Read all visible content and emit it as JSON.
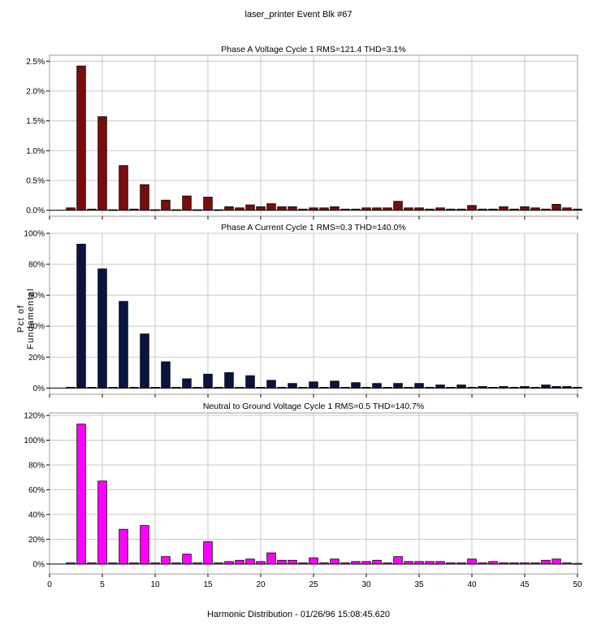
{
  "header": {
    "title": "laser_printer Event Blk #67"
  },
  "footer": {
    "xlabel": "Harmonic Distribution - 01/26/96 15:08:45.620"
  },
  "axis": {
    "ylabel": "Pct of Fundamental"
  },
  "chart_data": [
    {
      "type": "bar",
      "title": "Phase A Voltage Cycle 1 RMS=121.4 THD=3.1%",
      "color": "#7b0c0c",
      "xlim": [
        0,
        50
      ],
      "ylim": [
        -0.1,
        2.6
      ],
      "yticks": [
        0,
        0.5,
        1.0,
        1.5,
        2.0,
        2.5
      ],
      "ytick_labels": [
        "0.0%",
        "0.5%",
        "1.0%",
        "1.5%",
        "2.0%",
        "2.5%"
      ],
      "grid": true,
      "x": [
        2,
        3,
        4,
        5,
        6,
        7,
        8,
        9,
        10,
        11,
        12,
        13,
        14,
        15,
        16,
        17,
        18,
        19,
        20,
        21,
        22,
        23,
        24,
        25,
        26,
        27,
        28,
        29,
        30,
        31,
        32,
        33,
        34,
        35,
        36,
        37,
        38,
        39,
        40,
        41,
        42,
        43,
        44,
        45,
        46,
        47,
        48,
        49,
        50
      ],
      "values": [
        0.04,
        2.42,
        0.02,
        1.57,
        0.01,
        0.75,
        0.02,
        0.43,
        0.01,
        0.17,
        0.01,
        0.24,
        0.01,
        0.22,
        0.01,
        0.06,
        0.04,
        0.09,
        0.06,
        0.11,
        0.06,
        0.06,
        0.02,
        0.04,
        0.04,
        0.06,
        0.02,
        0.02,
        0.04,
        0.04,
        0.04,
        0.15,
        0.04,
        0.04,
        0.02,
        0.04,
        0.02,
        0.02,
        0.08,
        0.02,
        0.02,
        0.06,
        0.02,
        0.06,
        0.04,
        0.02,
        0.1,
        0.04,
        0.02
      ]
    },
    {
      "type": "bar",
      "title": "Phase A Current Cycle 1 RMS=0.3 THD=140.0%",
      "color": "#0a1440",
      "xlim": [
        0,
        50
      ],
      "ylim": [
        -4,
        100
      ],
      "yticks": [
        0,
        20,
        40,
        60,
        80,
        100
      ],
      "ytick_labels": [
        "0%",
        "20%",
        "40%",
        "60%",
        "80%",
        "100%"
      ],
      "grid": true,
      "x": [
        2,
        3,
        4,
        5,
        6,
        7,
        8,
        9,
        10,
        11,
        12,
        13,
        14,
        15,
        16,
        17,
        18,
        19,
        20,
        21,
        22,
        23,
        24,
        25,
        26,
        27,
        28,
        29,
        30,
        31,
        32,
        33,
        34,
        35,
        36,
        37,
        38,
        39,
        40,
        41,
        42,
        43,
        44,
        45,
        46,
        47,
        48,
        49,
        50
      ],
      "values": [
        0.5,
        93,
        0.5,
        77,
        0.5,
        56,
        0.5,
        35,
        0.5,
        17,
        0.5,
        6,
        0.5,
        9,
        0.5,
        10,
        0.5,
        8,
        0.5,
        5,
        0.5,
        3,
        0.5,
        4,
        0.5,
        4.5,
        0.5,
        3.5,
        0.5,
        3,
        0.5,
        3,
        0.5,
        3,
        0.5,
        2,
        0.5,
        2,
        0.5,
        1,
        0.5,
        1,
        0.5,
        1,
        0.5,
        2,
        1,
        1,
        0.5
      ]
    },
    {
      "type": "bar",
      "title": "Neutral to Ground Voltage Cycle 1 RMS=0.5 THD=140.7%",
      "color": "#ff00ff",
      "xlim": [
        0,
        50
      ],
      "xticks": [
        0,
        5,
        10,
        15,
        20,
        25,
        30,
        35,
        40,
        45,
        50
      ],
      "ylim": [
        -8,
        122
      ],
      "yticks": [
        0,
        20,
        40,
        60,
        80,
        100,
        120
      ],
      "ytick_labels": [
        "0%",
        "20%",
        "40%",
        "60%",
        "80%",
        "100%",
        "120%"
      ],
      "grid": true,
      "x": [
        2,
        3,
        4,
        5,
        6,
        7,
        8,
        9,
        10,
        11,
        12,
        13,
        14,
        15,
        16,
        17,
        18,
        19,
        20,
        21,
        22,
        23,
        24,
        25,
        26,
        27,
        28,
        29,
        30,
        31,
        32,
        33,
        34,
        35,
        36,
        37,
        38,
        39,
        40,
        41,
        42,
        43,
        44,
        45,
        46,
        47,
        48,
        49,
        50
      ],
      "values": [
        1,
        113,
        1,
        67,
        1,
        28,
        1,
        31,
        1,
        6,
        1,
        8,
        1,
        18,
        1,
        2,
        3,
        4,
        2,
        9,
        3,
        3,
        1,
        5,
        1,
        4,
        1,
        2,
        2,
        3,
        1,
        6,
        2,
        2,
        2,
        2,
        1,
        1,
        4,
        1,
        2,
        1,
        1,
        1,
        1,
        3,
        4,
        1,
        0.5
      ]
    }
  ]
}
